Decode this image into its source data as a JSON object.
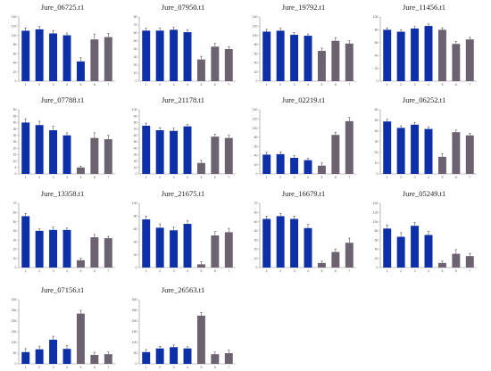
{
  "colors": {
    "blue": "#0d2fa8",
    "gray": "#6d6270",
    "axis": "#8a8a8a",
    "error": "#333333"
  },
  "chart_data": [
    {
      "type": "bar",
      "title": "Jure_06725.t1",
      "categories": [
        "1",
        "2",
        "3",
        "4",
        "5",
        "6",
        "7"
      ],
      "values": [
        110,
        113,
        104,
        100,
        43,
        91,
        96
      ],
      "errors": [
        6,
        6,
        6,
        5,
        8,
        12,
        8
      ],
      "colors": [
        "blue",
        "blue",
        "blue",
        "blue",
        "blue",
        "gray",
        "gray"
      ],
      "ylim": [
        0,
        140
      ],
      "yticks": [
        "0",
        "20",
        "40",
        "60",
        "80",
        "100",
        "120",
        "140"
      ]
    },
    {
      "type": "bar",
      "title": "Jure_07950.t1",
      "categories": [
        "1",
        "2",
        "3",
        "4",
        "5",
        "6",
        "7"
      ],
      "values": [
        63,
        63,
        64,
        61,
        27,
        43,
        40
      ],
      "errors": [
        3,
        3,
        3,
        3,
        4,
        4,
        3
      ],
      "colors": [
        "blue",
        "blue",
        "blue",
        "blue",
        "gray",
        "gray",
        "gray"
      ],
      "ylim": [
        0,
        80
      ],
      "yticks": [
        "0",
        "10",
        "20",
        "30",
        "40",
        "50",
        "60",
        "70",
        "80"
      ]
    },
    {
      "type": "bar",
      "title": "Jure_19792.t1",
      "categories": [
        "1",
        "2",
        "3",
        "4",
        "5",
        "6",
        "7"
      ],
      "values": [
        108,
        110,
        101,
        99,
        66,
        88,
        82
      ],
      "errors": [
        5,
        5,
        5,
        4,
        6,
        7,
        6
      ],
      "colors": [
        "blue",
        "blue",
        "blue",
        "blue",
        "gray",
        "gray",
        "gray"
      ],
      "ylim": [
        0,
        140
      ],
      "yticks": [
        "0",
        "20",
        "40",
        "60",
        "80",
        "100",
        "120",
        "140"
      ]
    },
    {
      "type": "bar",
      "title": "Jure_11456.t1",
      "categories": [
        "1",
        "2",
        "3",
        "4",
        "5",
        "6",
        "7"
      ],
      "values": [
        80,
        77,
        82,
        86,
        80,
        58,
        65
      ],
      "errors": [
        3,
        3,
        3,
        3,
        3,
        4,
        3
      ],
      "colors": [
        "blue",
        "blue",
        "blue",
        "blue",
        "gray",
        "gray",
        "gray"
      ],
      "ylim": [
        0,
        100
      ],
      "yticks": [
        "0",
        "20",
        "40",
        "60",
        "80",
        "100"
      ]
    },
    {
      "type": "bar",
      "title": "Jure_07788.t1",
      "categories": [
        "1",
        "2",
        "3",
        "4",
        "5",
        "6",
        "7"
      ],
      "values": [
        40,
        38,
        34,
        30,
        5,
        28,
        27
      ],
      "errors": [
        3,
        3,
        3,
        2,
        1,
        4,
        3
      ],
      "colors": [
        "blue",
        "blue",
        "blue",
        "blue",
        "gray",
        "gray",
        "gray"
      ],
      "ylim": [
        0,
        50
      ],
      "yticks": [
        "0",
        "5",
        "10",
        "15",
        "20",
        "25",
        "30",
        "35",
        "40",
        "45",
        "50"
      ]
    },
    {
      "type": "bar",
      "title": "Jure_21178.t1",
      "categories": [
        "1",
        "2",
        "3",
        "4",
        "5",
        "6",
        "7"
      ],
      "values": [
        75,
        68,
        67,
        74,
        17,
        58,
        56
      ],
      "errors": [
        4,
        4,
        4,
        3,
        4,
        4,
        4
      ],
      "colors": [
        "blue",
        "blue",
        "blue",
        "blue",
        "gray",
        "gray",
        "gray"
      ],
      "ylim": [
        0,
        100
      ],
      "yticks": [
        "0",
        "10",
        "20",
        "30",
        "40",
        "50",
        "60",
        "70",
        "80",
        "90",
        "100"
      ]
    },
    {
      "type": "bar",
      "title": "Jure_02219.t1",
      "categories": [
        "1",
        "2",
        "3",
        "4",
        "5",
        "6",
        "7"
      ],
      "values": [
        42,
        43,
        35,
        30,
        18,
        85,
        115
      ],
      "errors": [
        5,
        5,
        5,
        4,
        6,
        6,
        8
      ],
      "colors": [
        "blue",
        "blue",
        "blue",
        "blue",
        "gray",
        "gray",
        "gray"
      ],
      "ylim": [
        0,
        140
      ],
      "yticks": [
        "0",
        "20",
        "40",
        "60",
        "80",
        "100",
        "120",
        "140"
      ]
    },
    {
      "type": "bar",
      "title": "Jure_06252.t1",
      "categories": [
        "1",
        "2",
        "3",
        "4",
        "5",
        "6",
        "7"
      ],
      "values": [
        49,
        43,
        46,
        42,
        16,
        39,
        36
      ],
      "errors": [
        2,
        2,
        2,
        2,
        3,
        2,
        2
      ],
      "colors": [
        "blue",
        "blue",
        "blue",
        "blue",
        "gray",
        "gray",
        "gray"
      ],
      "ylim": [
        0,
        60
      ],
      "yticks": [
        "0",
        "10",
        "20",
        "30",
        "40",
        "50",
        "60"
      ]
    },
    {
      "type": "bar",
      "title": "Jure_13358.t1",
      "categories": [
        "1",
        "2",
        "3",
        "4",
        "5",
        "6",
        "7"
      ],
      "values": [
        56,
        40,
        41,
        41,
        8,
        33,
        32
      ],
      "errors": [
        3,
        2,
        3,
        2,
        2,
        3,
        2
      ],
      "colors": [
        "blue",
        "blue",
        "blue",
        "blue",
        "gray",
        "gray",
        "gray"
      ],
      "ylim": [
        0,
        70
      ],
      "yticks": [
        "0",
        "10",
        "20",
        "30",
        "40",
        "50",
        "60",
        "70"
      ]
    },
    {
      "type": "bar",
      "title": "Jure_21675.t1",
      "categories": [
        "1",
        "2",
        "3",
        "4",
        "5",
        "6",
        "7"
      ],
      "values": [
        75,
        62,
        58,
        68,
        5,
        50,
        55
      ],
      "errors": [
        5,
        6,
        5,
        5,
        4,
        6,
        6
      ],
      "colors": [
        "blue",
        "blue",
        "blue",
        "blue",
        "gray",
        "gray",
        "gray"
      ],
      "ylim": [
        0,
        100
      ],
      "yticks": [
        "0",
        "20",
        "40",
        "60",
        "80",
        "100"
      ]
    },
    {
      "type": "bar",
      "title": "Jure_16679.t1",
      "categories": [
        "1",
        "2",
        "3",
        "4",
        "5",
        "6",
        "7"
      ],
      "values": [
        53,
        56,
        53,
        43,
        5,
        17,
        27
      ],
      "errors": [
        3,
        3,
        3,
        4,
        2,
        3,
        5
      ],
      "colors": [
        "blue",
        "blue",
        "blue",
        "blue",
        "gray",
        "gray",
        "gray"
      ],
      "ylim": [
        0,
        70
      ],
      "yticks": [
        "0",
        "10",
        "20",
        "30",
        "40",
        "50",
        "60",
        "70"
      ]
    },
    {
      "type": "bar",
      "title": "Jure_05249.t1",
      "categories": [
        "1",
        "2",
        "3",
        "4",
        "5",
        "6",
        "7"
      ],
      "values": [
        85,
        67,
        91,
        71,
        10,
        30,
        25
      ],
      "errors": [
        8,
        9,
        7,
        8,
        4,
        9,
        6
      ],
      "colors": [
        "blue",
        "blue",
        "blue",
        "blue",
        "gray",
        "gray",
        "gray"
      ],
      "ylim": [
        0,
        140
      ],
      "yticks": [
        "0",
        "20",
        "40",
        "60",
        "80",
        "100",
        "120",
        "140"
      ]
    },
    {
      "type": "bar",
      "title": "Jure_07156.t1",
      "categories": [
        "1",
        "2",
        "3",
        "4",
        "5",
        "6",
        "7"
      ],
      "values": [
        55,
        68,
        113,
        70,
        235,
        42,
        45
      ],
      "errors": [
        16,
        15,
        16,
        15,
        15,
        12,
        10
      ],
      "colors": [
        "blue",
        "blue",
        "blue",
        "blue",
        "gray",
        "gray",
        "gray"
      ],
      "ylim": [
        0,
        300
      ],
      "yticks": [
        "0",
        "50",
        "100",
        "150",
        "200",
        "250",
        "300"
      ]
    },
    {
      "type": "bar",
      "title": "Jure_26563.t1",
      "categories": [
        "1",
        "2",
        "3",
        "4",
        "5",
        "6",
        "7"
      ],
      "values": [
        55,
        72,
        78,
        72,
        225,
        45,
        50
      ],
      "errors": [
        12,
        10,
        10,
        8,
        15,
        10,
        14
      ],
      "colors": [
        "blue",
        "blue",
        "blue",
        "blue",
        "gray",
        "gray",
        "gray"
      ],
      "ylim": [
        0,
        300
      ],
      "yticks": [
        "0",
        "50",
        "100",
        "150",
        "200",
        "250",
        "300"
      ]
    }
  ]
}
